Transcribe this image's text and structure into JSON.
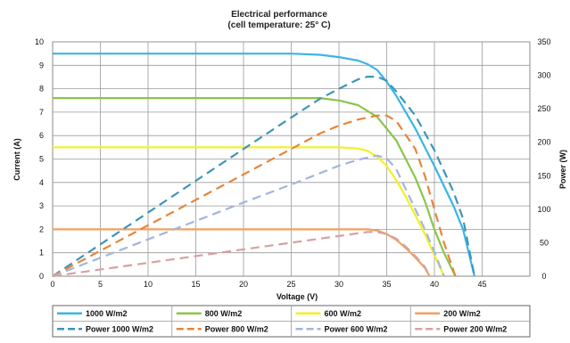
{
  "chart_data": {
    "type": "line",
    "title": "Electrical performance",
    "subtitle": "(cell temperature: 25° C)",
    "xlabel": "Voltage (V)",
    "ylabel_left": "Current (A)",
    "ylabel_right": "Power (W)",
    "xlim": [
      0,
      50
    ],
    "ylim_left": [
      0,
      10
    ],
    "ylim_right": [
      0,
      350
    ],
    "x_ticks": [
      "0",
      "5",
      "10",
      "15",
      "20",
      "25",
      "30",
      "35",
      "40",
      "45"
    ],
    "y_left_ticks": [
      "0",
      "1",
      "2",
      "3",
      "4",
      "5",
      "6",
      "7",
      "8",
      "9",
      "10"
    ],
    "y_right_ticks": [
      "0",
      "50",
      "100",
      "150",
      "200",
      "250",
      "300",
      "350"
    ],
    "grid": true,
    "legend_position": "bottom",
    "series": [
      {
        "name": "1000 W/m2",
        "axis": "left",
        "style": "solid",
        "color": "#3bb5e3",
        "x": [
          0,
          10,
          20,
          25,
          28,
          30,
          32,
          33,
          34,
          35,
          36,
          38,
          40,
          42,
          43,
          44.2
        ],
        "y": [
          9.5,
          9.5,
          9.5,
          9.5,
          9.45,
          9.35,
          9.2,
          9.05,
          8.8,
          8.3,
          7.7,
          6.3,
          4.7,
          3.0,
          2.0,
          0
        ]
      },
      {
        "name": "800 W/m2",
        "axis": "left",
        "style": "solid",
        "color": "#8cc44a",
        "x": [
          0,
          10,
          20,
          25,
          28,
          30,
          32,
          34,
          36,
          38,
          39,
          40,
          41,
          42.2
        ],
        "y": [
          7.6,
          7.6,
          7.6,
          7.6,
          7.6,
          7.5,
          7.3,
          6.8,
          5.8,
          4.2,
          3.2,
          2.0,
          1.0,
          0
        ]
      },
      {
        "name": "600 W/m2",
        "axis": "left",
        "style": "solid",
        "color": "#f4f022",
        "x": [
          0,
          10,
          20,
          25,
          30,
          32,
          33,
          34,
          35,
          36,
          37,
          38,
          39,
          40,
          41
        ],
        "y": [
          5.5,
          5.5,
          5.5,
          5.5,
          5.5,
          5.45,
          5.35,
          5.1,
          4.7,
          4.1,
          3.4,
          2.6,
          1.8,
          0.9,
          0
        ]
      },
      {
        "name": "200 W/m2",
        "axis": "left",
        "style": "solid",
        "color": "#f0a060",
        "x": [
          0,
          10,
          20,
          30,
          32,
          33,
          34,
          35,
          36,
          37,
          38,
          39,
          39.5
        ],
        "y": [
          2.0,
          2.0,
          2.0,
          2.0,
          2.0,
          2.0,
          1.95,
          1.8,
          1.55,
          1.2,
          0.8,
          0.35,
          0
        ]
      },
      {
        "name": "Power 1000 W/m2",
        "axis": "right",
        "style": "dashed",
        "color": "#3d96b8",
        "x": [
          0,
          10,
          20,
          25,
          28,
          30,
          32,
          33,
          34,
          35,
          36,
          38,
          40,
          42,
          43,
          44.2
        ],
        "y": [
          0,
          95,
          190,
          237,
          265,
          280,
          294,
          298,
          298,
          292,
          276,
          240,
          188,
          126,
          86,
          0
        ]
      },
      {
        "name": "Power 800 W/m2",
        "axis": "right",
        "style": "dashed",
        "color": "#e6853a",
        "x": [
          0,
          10,
          20,
          25,
          28,
          30,
          32,
          34,
          35,
          36,
          38,
          39,
          40,
          41,
          42.2
        ],
        "y": [
          0,
          76,
          152,
          190,
          213,
          225,
          234,
          240,
          240,
          232,
          190,
          150,
          100,
          50,
          0
        ]
      },
      {
        "name": "Power 600 W/m2",
        "axis": "right",
        "style": "dashed",
        "color": "#a3b5dd",
        "x": [
          0,
          10,
          20,
          25,
          30,
          32,
          33,
          34,
          35,
          36,
          37,
          38,
          39,
          40,
          41
        ],
        "y": [
          0,
          55,
          110,
          137,
          165,
          174,
          177,
          180,
          176,
          160,
          130,
          100,
          70,
          36,
          0
        ]
      },
      {
        "name": "Power 200 W/m2",
        "axis": "right",
        "style": "dashed",
        "color": "#d9a0a0",
        "x": [
          0,
          10,
          20,
          30,
          32,
          33,
          34,
          35,
          36,
          37,
          38,
          39,
          39.5
        ],
        "y": [
          0,
          20,
          40,
          60,
          64,
          66,
          66,
          63,
          56,
          44,
          30,
          14,
          0
        ]
      }
    ]
  }
}
